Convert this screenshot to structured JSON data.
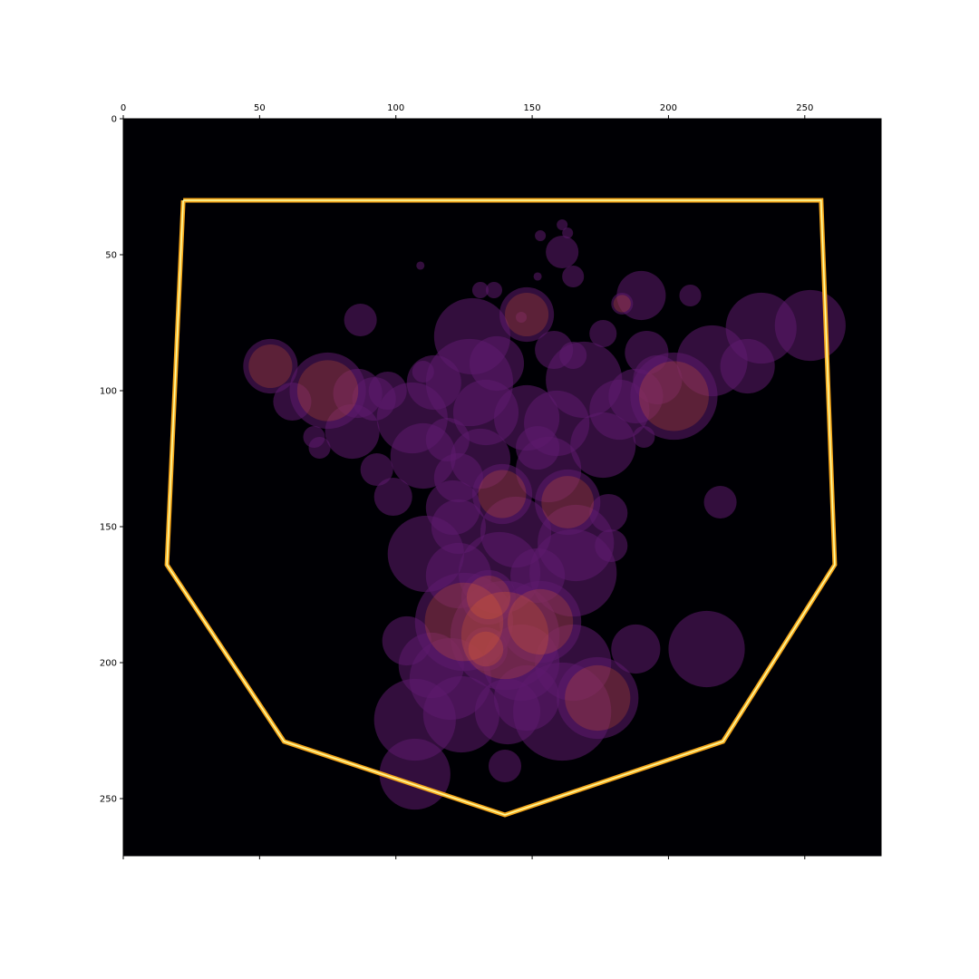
{
  "chart_data": {
    "type": "heatmap",
    "title": "",
    "xlabel": "",
    "ylabel": "",
    "xlim": [
      0,
      278
    ],
    "ylim": [
      271,
      0
    ],
    "x_axis_position": "top",
    "x_ticks": [
      0,
      50,
      100,
      150,
      200,
      250
    ],
    "y_ticks": [
      0,
      50,
      100,
      150,
      200,
      250
    ],
    "grid": false,
    "colormap": "inferno",
    "colors": {
      "background": "#000004",
      "blob": "#5c1a6e",
      "blob_hot": "#f06a28",
      "hull_outer": "#f7a81c",
      "hull_inner": "#fcffa4"
    },
    "hull_polygon": [
      [
        22,
        30
      ],
      [
        256,
        30
      ],
      [
        261,
        164
      ],
      [
        220,
        229
      ],
      [
        140,
        256
      ],
      [
        59,
        229
      ],
      [
        16,
        164
      ],
      [
        22,
        30
      ]
    ],
    "circles": [
      [
        97,
        100,
        7
      ],
      [
        87,
        74,
        6
      ],
      [
        54,
        91,
        10
      ],
      [
        62,
        104,
        7
      ],
      [
        70,
        117,
        4
      ],
      [
        75,
        100,
        14
      ],
      [
        86,
        101,
        9
      ],
      [
        92,
        103,
        8
      ],
      [
        72,
        121,
        4
      ],
      [
        84,
        115,
        10
      ],
      [
        93,
        129,
        6
      ],
      [
        99,
        139,
        7
      ],
      [
        106,
        110,
        13
      ],
      [
        110,
        124,
        12
      ],
      [
        110,
        93,
        4
      ],
      [
        109,
        54,
        1.5
      ],
      [
        114,
        97,
        10
      ],
      [
        119,
        118,
        8
      ],
      [
        123,
        132,
        9
      ],
      [
        121,
        143,
        10
      ],
      [
        127,
        97,
        16
      ],
      [
        128,
        80,
        14
      ],
      [
        137,
        90,
        10
      ],
      [
        133,
        108,
        12
      ],
      [
        131,
        125,
        11
      ],
      [
        139,
        138,
        11
      ],
      [
        144,
        152,
        13
      ],
      [
        131,
        63,
        3
      ],
      [
        136,
        63,
        3
      ],
      [
        148,
        72,
        10
      ],
      [
        146,
        73,
        2
      ],
      [
        148,
        110,
        12
      ],
      [
        152,
        121,
        8
      ],
      [
        156,
        129,
        12
      ],
      [
        159,
        112,
        12
      ],
      [
        163,
        141,
        12
      ],
      [
        166,
        156,
        14
      ],
      [
        158,
        85,
        7
      ],
      [
        165,
        87,
        5
      ],
      [
        176,
        79,
        5
      ],
      [
        169,
        96,
        14
      ],
      [
        176,
        120,
        12
      ],
      [
        182,
        107,
        11
      ],
      [
        188,
        102,
        10
      ],
      [
        196,
        96,
        9
      ],
      [
        190,
        65,
        9
      ],
      [
        183,
        68,
        4
      ],
      [
        208,
        65,
        4
      ],
      [
        202,
        102,
        16
      ],
      [
        192,
        86,
        8
      ],
      [
        216,
        89,
        13
      ],
      [
        229,
        91,
        10
      ],
      [
        234,
        77,
        13
      ],
      [
        252,
        76,
        13
      ],
      [
        219,
        141,
        6
      ],
      [
        191,
        117,
        4
      ],
      [
        178,
        145,
        7
      ],
      [
        179,
        157,
        6
      ],
      [
        163,
        42,
        2
      ],
      [
        161,
        49,
        6
      ],
      [
        165,
        58,
        4
      ],
      [
        152,
        58,
        1.5
      ],
      [
        153,
        43,
        2
      ],
      [
        161,
        39,
        2
      ],
      [
        123,
        150,
        10
      ],
      [
        111,
        160,
        14
      ],
      [
        138,
        167,
        15
      ],
      [
        165,
        167,
        16
      ],
      [
        125,
        185,
        18
      ],
      [
        140,
        190,
        20
      ],
      [
        153,
        185,
        15
      ],
      [
        146,
        200,
        14
      ],
      [
        104,
        192,
        9
      ],
      [
        113,
        201,
        12
      ],
      [
        165,
        200,
        14
      ],
      [
        174,
        213,
        15
      ],
      [
        188,
        195,
        9
      ],
      [
        148,
        213,
        12
      ],
      [
        161,
        218,
        18
      ],
      [
        124,
        219,
        14
      ],
      [
        107,
        221,
        15
      ],
      [
        141,
        218,
        12
      ],
      [
        120,
        206,
        15
      ],
      [
        107,
        241,
        13
      ],
      [
        140,
        238,
        6
      ],
      [
        214,
        195,
        14
      ],
      [
        134,
        176,
        10
      ],
      [
        133,
        195,
        8
      ],
      [
        152,
        168,
        10
      ],
      [
        123,
        168,
        12
      ]
    ]
  }
}
